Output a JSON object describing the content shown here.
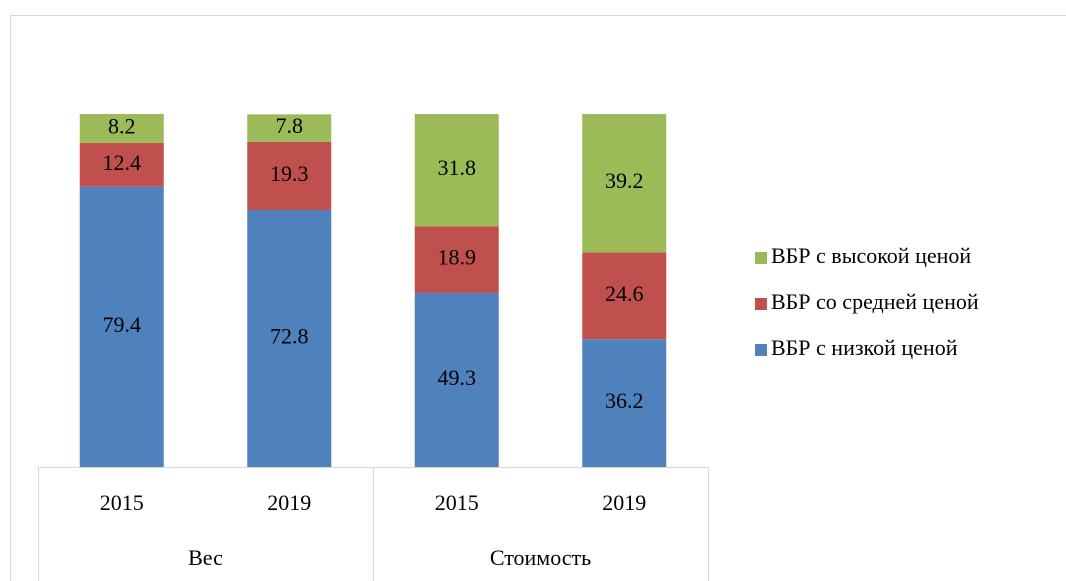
{
  "chart_data": {
    "type": "stacked_bar",
    "categories": [
      "2015",
      "2019",
      "2015",
      "2019"
    ],
    "groups": [
      "Вес",
      "Стоимость"
    ],
    "series": [
      {
        "name": "ВБР с низкой ценой",
        "color": "#4f81bd",
        "values": [
          79.4,
          72.8,
          49.3,
          36.2
        ]
      },
      {
        "name": "ВБР со средней ценой",
        "color": "#c0504d",
        "values": [
          12.4,
          19.3,
          18.9,
          24.6
        ]
      },
      {
        "name": "ВБР с высокой ценой",
        "color": "#9bbb59",
        "values": [
          8.2,
          7.8,
          31.8,
          39.2
        ]
      }
    ],
    "ylim": [
      0,
      100
    ],
    "legend": "right"
  }
}
